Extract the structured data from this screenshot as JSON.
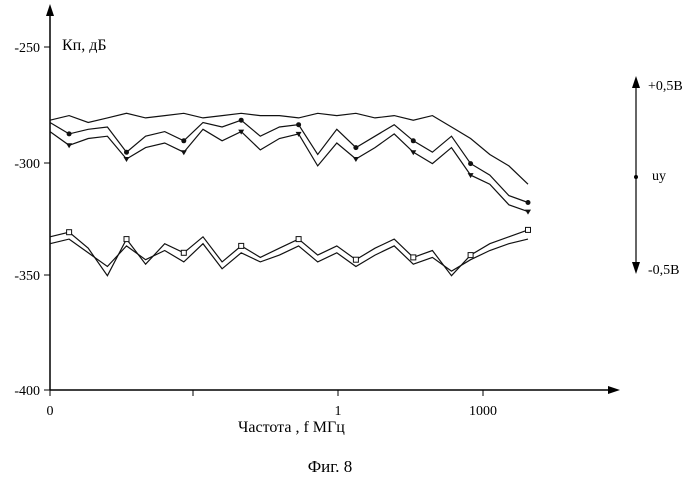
{
  "chart_data": {
    "type": "line",
    "ylabel": "Кп, дБ",
    "xlabel": "Частота , f  МГц",
    "caption": "Фиг. 8",
    "y_ticks": [
      "-250",
      "-300",
      "-350",
      "-400"
    ],
    "ylim": [
      -400,
      -235
    ],
    "x_ticks": [
      "0",
      "1",
      "1000"
    ],
    "x_scale": "log",
    "right_axis": {
      "label_top": "+0,5В",
      "label_mid": "uу",
      "label_bottom": "-0,5В"
    },
    "x_positions": [
      0,
      0.04,
      0.08,
      0.12,
      0.16,
      0.2,
      0.24,
      0.28,
      0.32,
      0.36,
      0.4,
      0.44,
      0.48,
      0.52,
      0.56,
      0.6,
      0.64,
      0.68,
      0.72,
      0.76,
      0.8,
      0.84,
      0.88,
      0.92,
      0.96,
      1.0
    ],
    "series": [
      {
        "values": [
          -282,
          -280,
          -283,
          -281,
          -279,
          -281,
          -280,
          -279,
          -281,
          -280,
          -279,
          -280,
          -280,
          -281,
          -279,
          -280,
          -279,
          -281,
          -280,
          -282,
          -280,
          -285,
          -290,
          -297,
          -302,
          -310
        ],
        "marker": "none"
      },
      {
        "values": [
          -287,
          -293,
          -290,
          -289,
          -299,
          -294,
          -292,
          -296,
          -286,
          -291,
          -287,
          -295,
          -290,
          -288,
          -302,
          -292,
          -299,
          -294,
          -288,
          -296,
          -301,
          -294,
          -306,
          -310,
          -319,
          -322
        ],
        "marker": "triangle"
      },
      {
        "values": [
          -283,
          -288,
          -286,
          -285,
          -296,
          -289,
          -287,
          -291,
          -283,
          -285,
          -282,
          -289,
          -285,
          -284,
          -297,
          -286,
          -294,
          -289,
          -284,
          -291,
          -296,
          -289,
          -301,
          -306,
          -315,
          -318
        ],
        "marker": "circle"
      },
      {
        "values": [
          -333,
          -331,
          -338,
          -350,
          -334,
          -345,
          -336,
          -340,
          -333,
          -344,
          -337,
          -342,
          -338,
          -334,
          -341,
          -337,
          -343,
          -338,
          -334,
          -342,
          -339,
          -350,
          -341,
          -336,
          -333,
          -330
        ],
        "marker": "square"
      },
      {
        "values": [
          -336,
          -334,
          -340,
          -346,
          -337,
          -343,
          -339,
          -344,
          -336,
          -347,
          -340,
          -344,
          -341,
          -337,
          -344,
          -340,
          -346,
          -341,
          -337,
          -345,
          -342,
          -348,
          -343,
          -339,
          -336,
          -334
        ],
        "marker": "none"
      }
    ]
  },
  "colors": {
    "line": "#111111",
    "background": "#ffffff"
  }
}
